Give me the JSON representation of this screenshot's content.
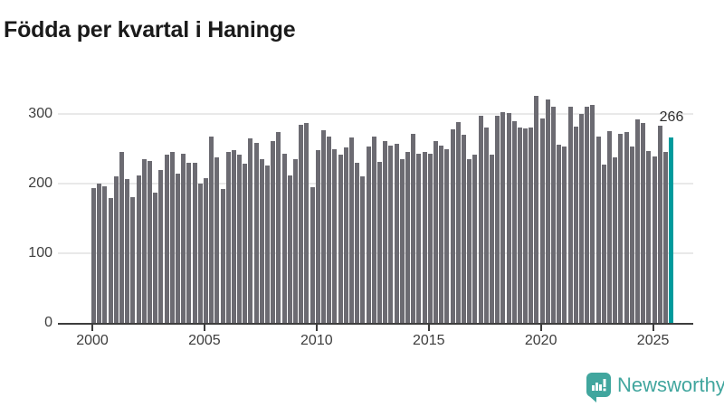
{
  "title": "Födda per kvartal i Haninge",
  "chart_data": {
    "type": "bar",
    "title": "Födda per kvartal i Haninge",
    "x_start": "2000-Q1",
    "x_freq": "quarterly",
    "x_labels": [
      "2000Q1",
      "2000Q2",
      "2000Q3",
      "2000Q4",
      "2001Q1",
      "2001Q2",
      "2001Q3",
      "2001Q4",
      "2002Q1",
      "2002Q2",
      "2002Q3",
      "2002Q4",
      "2003Q1",
      "2003Q2",
      "2003Q3",
      "2003Q4",
      "2004Q1",
      "2004Q2",
      "2004Q3",
      "2004Q4",
      "2005Q1",
      "2005Q2",
      "2005Q3",
      "2005Q4",
      "2006Q1",
      "2006Q2",
      "2006Q3",
      "2006Q4",
      "2007Q1",
      "2007Q2",
      "2007Q3",
      "2007Q4",
      "2008Q1",
      "2008Q2",
      "2008Q3",
      "2008Q4",
      "2009Q1",
      "2009Q2",
      "2009Q3",
      "2009Q4",
      "2010Q1",
      "2010Q2",
      "2010Q3",
      "2010Q4",
      "2011Q1",
      "2011Q2",
      "2011Q3",
      "2011Q4",
      "2012Q1",
      "2012Q2",
      "2012Q3",
      "2012Q4",
      "2013Q1",
      "2013Q2",
      "2013Q3",
      "2013Q4",
      "2014Q1",
      "2014Q2",
      "2014Q3",
      "2014Q4",
      "2015Q1",
      "2015Q2",
      "2015Q3",
      "2015Q4",
      "2016Q1",
      "2016Q2",
      "2016Q3",
      "2016Q4",
      "2017Q1",
      "2017Q2",
      "2017Q3",
      "2017Q4",
      "2018Q1",
      "2018Q2",
      "2018Q3",
      "2018Q4",
      "2019Q1",
      "2019Q2",
      "2019Q3",
      "2019Q4",
      "2020Q1",
      "2020Q2",
      "2020Q3",
      "2020Q4",
      "2021Q1",
      "2021Q2",
      "2021Q3",
      "2021Q4",
      "2022Q1",
      "2022Q2",
      "2022Q3",
      "2022Q4",
      "2023Q1",
      "2023Q2",
      "2023Q3",
      "2023Q4",
      "2024Q1",
      "2024Q2",
      "2024Q3",
      "2024Q4",
      "2025Q1",
      "2025Q2",
      "2025Q3",
      "2025Q4"
    ],
    "values": [
      194,
      200,
      196,
      179,
      211,
      246,
      206,
      180,
      212,
      235,
      232,
      187,
      219,
      242,
      245,
      214,
      243,
      230,
      230,
      200,
      208,
      268,
      238,
      192,
      246,
      248,
      241,
      229,
      265,
      258,
      235,
      226,
      261,
      274,
      243,
      212,
      235,
      284,
      287,
      195,
      248,
      277,
      267,
      250,
      241,
      252,
      266,
      230,
      211,
      253,
      267,
      231,
      261,
      255,
      257,
      235,
      246,
      272,
      243,
      245,
      243,
      261,
      255,
      249,
      278,
      288,
      270,
      235,
      242,
      298,
      280,
      242,
      297,
      303,
      301,
      290,
      281,
      279,
      281,
      326,
      293,
      321,
      310,
      256,
      253,
      310,
      282,
      300,
      310,
      313,
      268,
      227,
      275,
      238,
      272,
      274,
      253,
      292,
      287,
      247,
      239,
      283,
      245,
      266
    ],
    "highlight_index": 103,
    "highlight_value": 266,
    "ylim": [
      0,
      340
    ],
    "y_ticks": [
      0,
      100,
      200,
      300
    ],
    "x_tick_years": [
      2000,
      2005,
      2010,
      2015,
      2020,
      2025
    ],
    "grid": "horizontal",
    "legend": "none"
  },
  "axis": {
    "y_ticks": [
      "0",
      "100",
      "200",
      "300"
    ],
    "x_ticks": [
      "2000",
      "2005",
      "2010",
      "2015",
      "2020",
      "2025"
    ]
  },
  "annotation": {
    "text": "266"
  },
  "logo": {
    "text": "Newsworthy"
  },
  "colors": {
    "bar": "#6c6b72",
    "highlight": "#009a9c",
    "grid": "#e9e9e9",
    "axis": "#3d3d3d",
    "tick_text": "#3d3d3d",
    "title": "#1a1a1a",
    "logo": "#41a69e"
  }
}
